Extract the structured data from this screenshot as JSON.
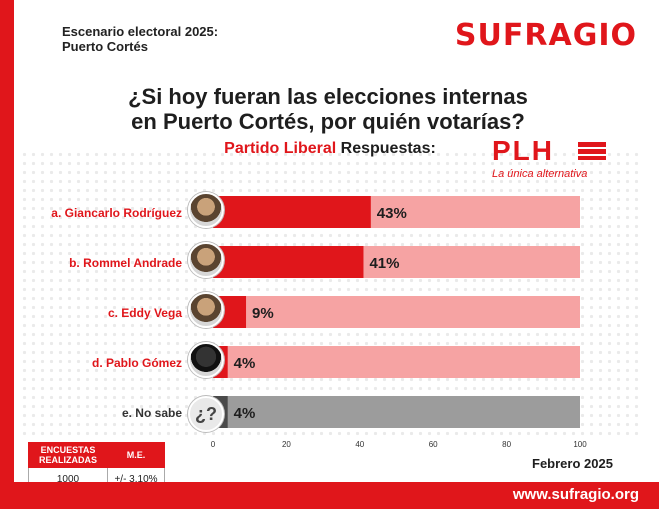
{
  "header": {
    "line1": "Escenario electoral 2025:",
    "line2": "Puerto Cortés",
    "brand": "SUFRAGIO"
  },
  "question": {
    "line1": "¿Si hoy fueran las elecciones internas",
    "line2": "en Puerto Cortés, por quién votarías?"
  },
  "subtitle": {
    "party": "Partido Liberal",
    "label": "Respuestas:"
  },
  "plh": {
    "name": "PLH",
    "slogan": "La única alternativa"
  },
  "colors": {
    "brand_red": "#e0161b",
    "bar_light": "#f6a3a3",
    "gray_bar": "#9c9c9c",
    "gray_dark": "#4a4a4a"
  },
  "chart_data": {
    "type": "bar",
    "orientation": "horizontal",
    "categories": [
      "a. Giancarlo Rodríguez",
      "b. Rommel Andrade",
      "c. Eddy Vega",
      "d. Pablo Gómez",
      "e. No sabe"
    ],
    "values": [
      43,
      41,
      9,
      4,
      4
    ],
    "value_labels": [
      "43%",
      "41%",
      "9%",
      "4%",
      "4%"
    ],
    "xlim": [
      0,
      100
    ],
    "xticks": [
      0,
      20,
      40,
      60,
      80,
      100
    ],
    "xtick_labels": [
      "0",
      "20",
      "40",
      "60",
      "80",
      "100"
    ]
  },
  "survey": {
    "col1_header": "ENCUESTAS REALIZADAS",
    "col2_header": "M.E.",
    "col1_value": "1000",
    "col2_value": "+/- 3.10%"
  },
  "date": "Febrero 2025",
  "footer": {
    "url": "www.sufragio.org"
  },
  "avatar_q": "¿?"
}
